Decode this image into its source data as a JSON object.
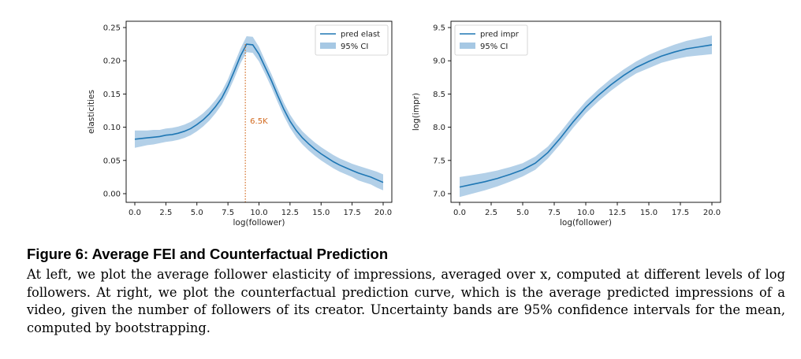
{
  "chart_data": [
    {
      "type": "line",
      "xlabel": "log(follower)",
      "ylabel": "elasticities",
      "xlim": [
        0,
        20
      ],
      "ylim": [
        0,
        0.25
      ],
      "xticks": [
        0,
        2.5,
        5,
        7.5,
        10,
        12.5,
        15,
        17.5,
        20
      ],
      "xtick_labels": [
        "0.0",
        "2.5",
        "5.0",
        "7.5",
        "10.0",
        "12.5",
        "15.0",
        "17.5",
        "20.0"
      ],
      "yticks": [
        0,
        0.05,
        0.1,
        0.15,
        0.2,
        0.25
      ],
      "ytick_labels": [
        "0.00",
        "0.05",
        "0.10",
        "0.15",
        "0.20",
        "0.25"
      ],
      "legend": "top-right",
      "grid": false,
      "series": [
        {
          "name": "pred elast",
          "color": "#1f77b4",
          "x": [
            0,
            0.5,
            1,
            1.5,
            2,
            2.5,
            3,
            3.5,
            4,
            4.5,
            5,
            5.5,
            6,
            6.5,
            7,
            7.5,
            8,
            8.5,
            9,
            9.5,
            10,
            10.5,
            11,
            11.5,
            12,
            12.5,
            13,
            13.5,
            14,
            14.5,
            15,
            15.5,
            16,
            16.5,
            17,
            17.5,
            18,
            18.5,
            19,
            19.5,
            20
          ],
          "y": [
            0.082,
            0.083,
            0.084,
            0.085,
            0.086,
            0.088,
            0.089,
            0.091,
            0.094,
            0.098,
            0.104,
            0.111,
            0.12,
            0.131,
            0.144,
            0.162,
            0.184,
            0.207,
            0.225,
            0.224,
            0.21,
            0.19,
            0.17,
            0.148,
            0.127,
            0.109,
            0.095,
            0.084,
            0.075,
            0.067,
            0.06,
            0.054,
            0.048,
            0.043,
            0.039,
            0.035,
            0.031,
            0.028,
            0.025,
            0.021,
            0.017
          ],
          "band_halfwidth": [
            0.013,
            0.012,
            0.011,
            0.011,
            0.01,
            0.01,
            0.01,
            0.01,
            0.01,
            0.01,
            0.01,
            0.01,
            0.01,
            0.01,
            0.01,
            0.01,
            0.011,
            0.011,
            0.012,
            0.012,
            0.011,
            0.01,
            0.01,
            0.01,
            0.01,
            0.01,
            0.01,
            0.01,
            0.01,
            0.01,
            0.01,
            0.01,
            0.01,
            0.01,
            0.01,
            0.01,
            0.011,
            0.011,
            0.011,
            0.012,
            0.012
          ]
        },
        {
          "name": "95% CI",
          "color": "#a6c8e4",
          "kind": "band"
        }
      ],
      "annotations": [
        {
          "x": 8.9,
          "text": "6.5K",
          "color": "#d2691e",
          "style": "dotted vertical line"
        }
      ]
    },
    {
      "type": "line",
      "xlabel": "log(follower)",
      "ylabel": "log(impr)",
      "xlim": [
        0,
        20
      ],
      "ylim": [
        7.0,
        9.5
      ],
      "xticks": [
        0,
        2.5,
        5,
        7.5,
        10,
        12.5,
        15,
        17.5,
        20
      ],
      "xtick_labels": [
        "0.0",
        "2.5",
        "5.0",
        "7.5",
        "10.0",
        "12.5",
        "15.0",
        "17.5",
        "20.0"
      ],
      "yticks": [
        7.0,
        7.5,
        8.0,
        8.5,
        9.0,
        9.5
      ],
      "ytick_labels": [
        "7.0",
        "7.5",
        "8.0",
        "8.5",
        "9.0",
        "9.5"
      ],
      "legend": "top-left",
      "grid": false,
      "series": [
        {
          "name": "pred impr",
          "color": "#1f77b4",
          "x": [
            0,
            1,
            2,
            3,
            4,
            5,
            6,
            7,
            8,
            9,
            10,
            11,
            12,
            13,
            14,
            15,
            16,
            17,
            18,
            19,
            20
          ],
          "y": [
            7.1,
            7.14,
            7.18,
            7.23,
            7.29,
            7.36,
            7.46,
            7.62,
            7.84,
            8.08,
            8.3,
            8.48,
            8.64,
            8.78,
            8.9,
            8.99,
            9.07,
            9.13,
            9.18,
            9.21,
            9.24
          ],
          "band_halfwidth": [
            0.15,
            0.14,
            0.13,
            0.12,
            0.11,
            0.1,
            0.1,
            0.09,
            0.09,
            0.09,
            0.09,
            0.09,
            0.09,
            0.09,
            0.09,
            0.1,
            0.1,
            0.11,
            0.12,
            0.13,
            0.14
          ]
        },
        {
          "name": "95% CI",
          "color": "#a6c8e4",
          "kind": "band"
        }
      ]
    }
  ],
  "caption": {
    "title": "Figure 6: Average FEI and Counterfactual Prediction",
    "body": "At left, we plot the average follower elasticity of impressions, averaged over x, computed at different levels of log followers. At right, we plot the counterfactual prediction curve, which is the average predicted impressions of a video, given the number of followers of its creator. Uncertainty bands are 95% confidence intervals for the mean, computed by bootstrapping."
  }
}
